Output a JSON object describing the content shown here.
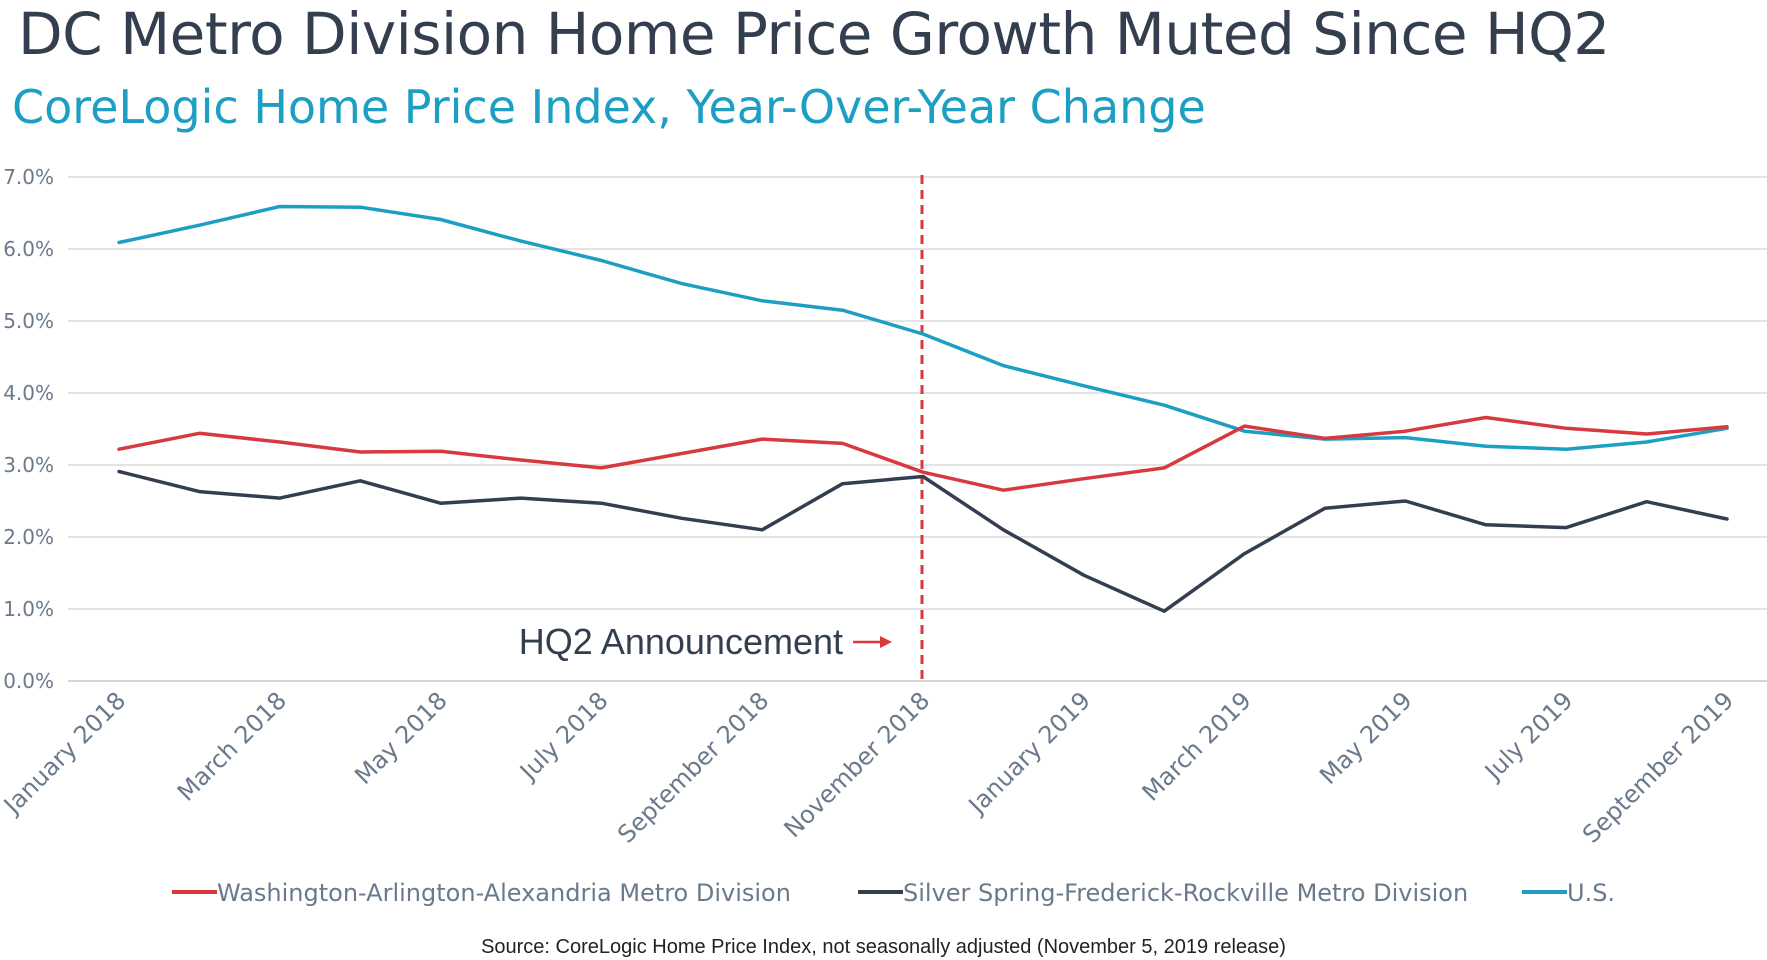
{
  "chart_data": {
    "type": "line",
    "title": "DC Metro Division Home Price Growth Muted Since HQ2",
    "subtitle": "CoreLogic Home Price Index, Year-Over-Year Change",
    "x": [
      "January 2018",
      "February 2018",
      "March 2018",
      "April 2018",
      "May 2018",
      "June 2018",
      "July 2018",
      "August 2018",
      "September 2018",
      "October 2018",
      "November 2018",
      "December 2018",
      "January 2019",
      "February 2019",
      "March 2019",
      "April 2019",
      "May 2019",
      "June 2019",
      "July 2019",
      "August 2019",
      "September 2019"
    ],
    "x_tick_labels": [
      "January 2018",
      "March 2018",
      "May 2018",
      "July 2018",
      "September 2018",
      "November 2018",
      "January 2019",
      "March 2019",
      "May 2019",
      "July 2019",
      "September 2019"
    ],
    "y_tick_labels": [
      "0.0%",
      "1.0%",
      "2.0%",
      "3.0%",
      "4.0%",
      "5.0%",
      "6.0%",
      "7.0%"
    ],
    "ylim": [
      0,
      7
    ],
    "grid": true,
    "legend_position": "bottom",
    "series": [
      {
        "name": "Washington-Arlington-Alexandria Metro Division",
        "color": "#d63a3f",
        "values": [
          3.22,
          3.44,
          3.32,
          3.18,
          3.19,
          3.07,
          2.96,
          3.16,
          3.36,
          3.3,
          2.9,
          2.65,
          2.81,
          2.96,
          3.54,
          3.37,
          3.47,
          3.66,
          3.51,
          3.43,
          3.53
        ]
      },
      {
        "name": "Silver Spring-Frederick-Rockville Metro Division",
        "color": "#333f4f",
        "values": [
          2.91,
          2.63,
          2.54,
          2.78,
          2.47,
          2.54,
          2.47,
          2.26,
          2.1,
          2.74,
          2.84,
          2.1,
          1.47,
          0.97,
          1.77,
          2.4,
          2.5,
          2.17,
          2.13,
          2.49,
          2.25
        ]
      },
      {
        "name": "U.S.",
        "color": "#1d9fc4",
        "values": [
          6.09,
          6.33,
          6.59,
          6.58,
          6.41,
          6.11,
          5.84,
          5.52,
          5.28,
          5.15,
          4.82,
          4.38,
          4.1,
          3.83,
          3.47,
          3.36,
          3.38,
          3.26,
          3.22,
          3.32,
          3.51
        ]
      }
    ],
    "annotation": {
      "text": "HQ2 Announcement",
      "at": "November 2018"
    },
    "source": "Source:  CoreLogic Home Price Index, not seasonally adjusted (November 5, 2019 release)"
  }
}
